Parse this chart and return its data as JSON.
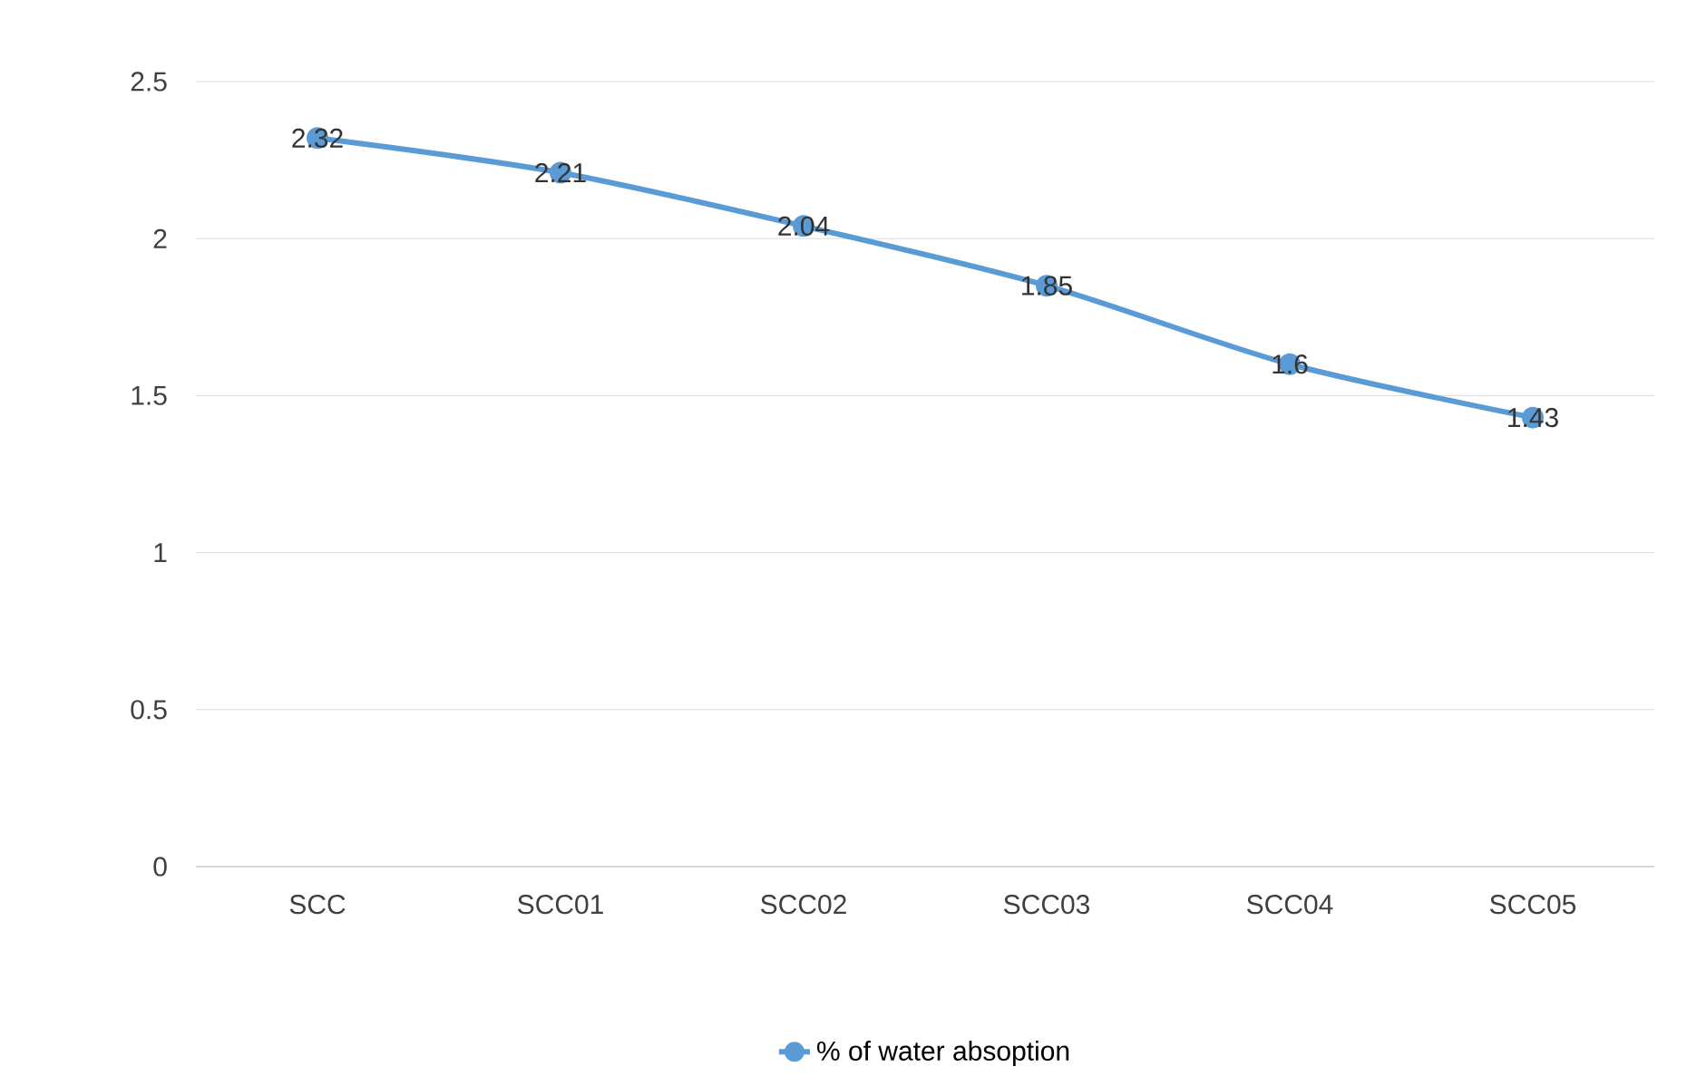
{
  "chart_data": {
    "type": "line",
    "categories": [
      "SCC",
      "SCC01",
      "SCC02",
      "SCC03",
      "SCC04",
      "SCC05"
    ],
    "series": [
      {
        "name": "% of water absoption",
        "color": "#5b9bd5",
        "values": [
          2.32,
          2.21,
          2.04,
          1.85,
          1.6,
          1.43
        ]
      }
    ],
    "ylim": [
      0,
      2.5
    ],
    "yticks": [
      0,
      0.5,
      1,
      1.5,
      2,
      2.5
    ],
    "grid": "y",
    "legend": "bottom",
    "marker": "circle",
    "line_style": "solid",
    "data_labels": true
  }
}
